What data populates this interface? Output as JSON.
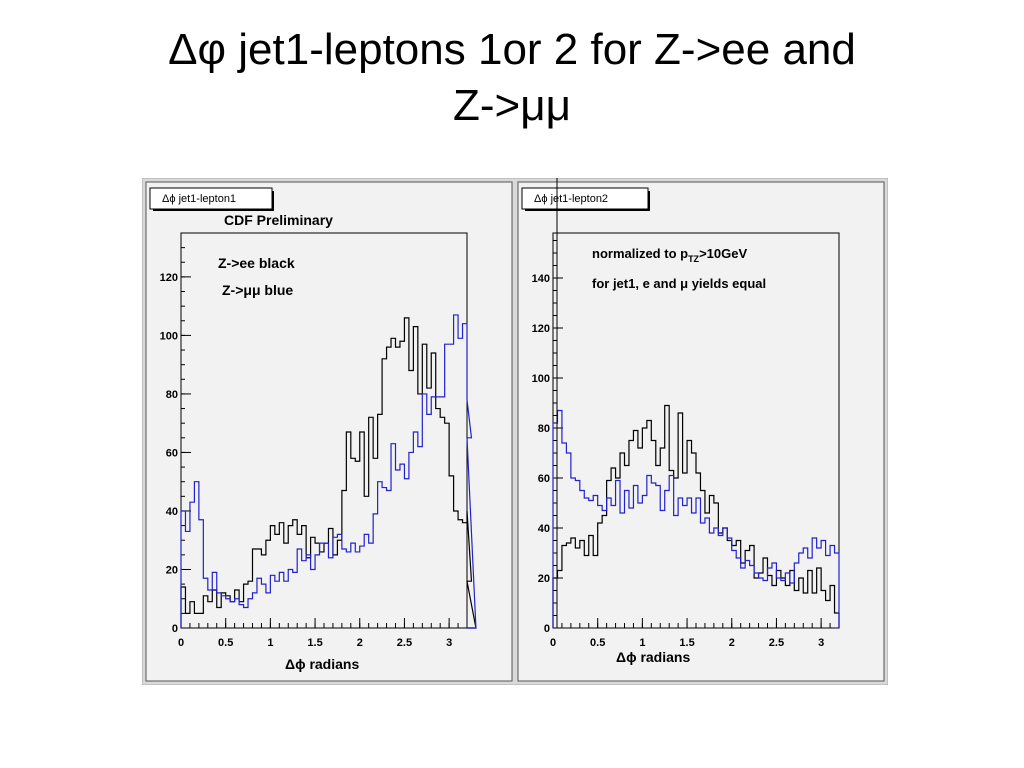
{
  "slide": {
    "title_line1": "Δφ jet1-leptons 1or 2 for Z->ee and",
    "title_line2": "Z->μμ"
  },
  "colors": {
    "ee": "#000000",
    "mumu": "#2222cc",
    "frame_bg": "#f0f0f0",
    "canvas_bg": "#e6e6e6"
  },
  "chart_data": [
    {
      "type": "line",
      "title": "Δϕ jet1-lepton1",
      "annotations": [
        "CDF Preliminary",
        "Z->ee black",
        "Z->μμ blue"
      ],
      "xlabel": "Δϕ radians",
      "ylabel": "",
      "xlim": [
        0,
        3.2
      ],
      "ylim": [
        0,
        135
      ],
      "xticks": [
        0,
        0.5,
        1,
        1.5,
        2,
        2.5,
        3
      ],
      "xtick_labels": [
        "0",
        "0.5",
        "1",
        "1.5",
        "2",
        "2.5",
        "3"
      ],
      "yticks": [
        0,
        20,
        40,
        60,
        80,
        100,
        120
      ],
      "ytick_labels": [
        "0",
        "20",
        "40",
        "60",
        "80",
        "100",
        "120"
      ],
      "bin_width": 0.05,
      "series": [
        {
          "name": "Z->ee",
          "values": [
            14,
            5,
            9,
            5,
            5,
            11,
            9,
            13,
            7,
            12,
            11,
            9,
            13,
            9,
            15,
            16,
            27,
            27,
            25,
            30,
            35,
            32,
            36,
            29,
            35,
            37,
            32,
            35,
            24,
            31,
            29,
            26,
            29,
            34,
            25,
            30,
            47,
            67,
            58,
            57,
            67,
            45,
            72,
            58,
            73,
            92,
            96,
            99,
            96,
            98,
            106,
            88,
            103,
            80,
            97,
            82,
            94,
            75,
            72,
            70,
            52,
            40,
            37,
            36,
            40,
            16,
            0
          ]
        },
        {
          "name": "Z->μμ",
          "values": [
            40,
            33,
            43,
            50,
            37,
            17,
            13,
            19,
            12,
            11,
            10,
            9,
            10,
            8,
            7,
            10,
            12,
            17,
            15,
            12,
            18,
            16,
            19,
            16,
            20,
            19,
            27,
            23,
            25,
            20,
            25,
            29,
            29,
            24,
            31,
            32,
            27,
            26,
            29,
            26,
            28,
            32,
            29,
            39,
            50,
            48,
            47,
            63,
            54,
            56,
            51,
            60,
            67,
            62,
            80,
            73,
            79,
            79,
            79,
            97,
            97,
            107,
            99,
            104,
            78,
            65,
            0
          ]
        }
      ]
    },
    {
      "type": "line",
      "title": "Δϕ jet1-lepton2",
      "annotations": [
        "normalized to p_TZ>10GeV",
        "for jet1, e and μ yields equal"
      ],
      "xlabel": "Δϕ radians",
      "ylabel": "",
      "xlim": [
        0,
        3.2
      ],
      "ylim": [
        0,
        158
      ],
      "xticks": [
        0,
        0.5,
        1,
        1.5,
        2,
        2.5,
        3
      ],
      "xtick_labels": [
        "0",
        "0.5",
        "1",
        "1.5",
        "2",
        "2.5",
        "3"
      ],
      "yticks": [
        0,
        20,
        40,
        60,
        80,
        100,
        120,
        140
      ],
      "ytick_labels": [
        "0",
        "20",
        "40",
        "60",
        "80",
        "100",
        "120",
        "140"
      ],
      "bin_width": 0.05,
      "series": [
        {
          "name": "Z->ee",
          "values": [
            20,
            23,
            33,
            34,
            36,
            32,
            35,
            29,
            37,
            29,
            42,
            45,
            59,
            64,
            60,
            70,
            65,
            75,
            79,
            72,
            80,
            83,
            75,
            65,
            72,
            89,
            63,
            60,
            86,
            62,
            75,
            70,
            62,
            55,
            46,
            53,
            50,
            38,
            40,
            35,
            33,
            35,
            26,
            31,
            33,
            20,
            22,
            28,
            21,
            17,
            23,
            20,
            17,
            23,
            15,
            20,
            14,
            23,
            14,
            24,
            15,
            11,
            17,
            6,
            0
          ]
        },
        {
          "name": "Z->μμ",
          "values": [
            82,
            87,
            74,
            70,
            60,
            59,
            55,
            52,
            51,
            53,
            49,
            47,
            52,
            49,
            59,
            46,
            55,
            48,
            57,
            50,
            53,
            61,
            58,
            57,
            47,
            55,
            61,
            45,
            52,
            49,
            52,
            46,
            52,
            42,
            44,
            38,
            40,
            37,
            40,
            36,
            31,
            28,
            24,
            27,
            25,
            22,
            20,
            19,
            24,
            26,
            20,
            19,
            22,
            18,
            26,
            30,
            32,
            28,
            36,
            32,
            35,
            29,
            33,
            30,
            0
          ]
        }
      ]
    }
  ]
}
